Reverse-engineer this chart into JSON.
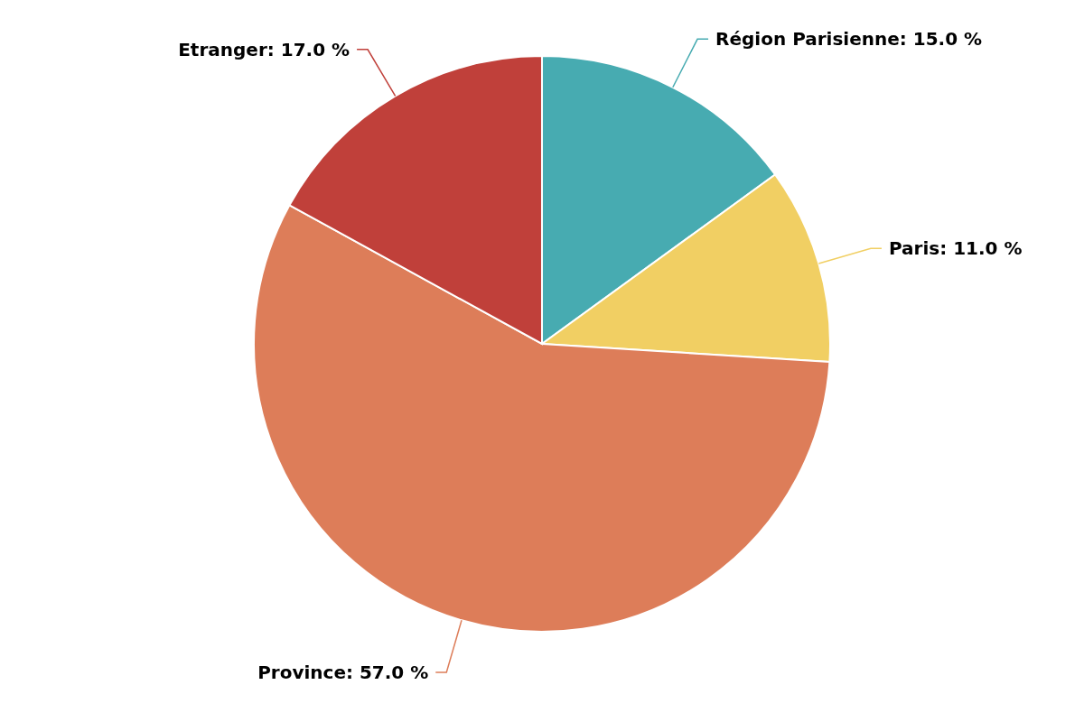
{
  "chart_data": {
    "type": "pie",
    "categories": [
      "Région Parisienne",
      "Paris",
      "Province",
      "Etranger"
    ],
    "values": [
      15,
      11,
      57,
      17
    ],
    "value_labels": [
      "15.0 %",
      "11.0 %",
      "57.0 %",
      "17.0 %"
    ],
    "colors": [
      "#47abb1",
      "#f1cf63",
      "#dd7d59",
      "#c0403a"
    ]
  }
}
